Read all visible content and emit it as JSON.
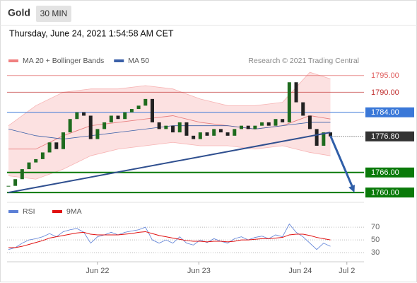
{
  "chart_data": {
    "type": "candlestick",
    "title": "Gold",
    "timeframe": "30 MIN",
    "subtitle": "Thursday, June 24, 2021 1:54:58 AM CET",
    "source": "Research © 2021 Trading Central",
    "xlim": [
      -0.2,
      51.9
    ],
    "xticks": [
      {
        "value": 13,
        "label": "Jun 22"
      },
      {
        "value": 27.8,
        "label": "Jun 23"
      },
      {
        "value": 42.6,
        "label": "Jun 24"
      },
      {
        "value": 49.4,
        "label": "Jul 2"
      }
    ],
    "ylim": [
      1757.7,
      1797.5
    ],
    "close": [
      1762,
      1764,
      1767,
      1769,
      1770,
      1772,
      1775,
      1773,
      1778,
      1782,
      1784,
      1783,
      1776,
      1779,
      1781,
      1783,
      1782,
      1784,
      1785,
      1786,
      1788,
      1781,
      1779,
      1780,
      1778,
      1781,
      1777,
      1776,
      1778,
      1777,
      1779,
      1778,
      1777,
      1779,
      1780,
      1779,
      1780,
      1781,
      1780,
      1782,
      1781,
      1793,
      1787,
      1783,
      1779,
      1774,
      1778,
      1776.8
    ],
    "up_color": "#1e6b1e",
    "down_color": "#222222",
    "legend": [
      {
        "name": "MA 20 + Bollinger Bands",
        "color": "#f08080"
      },
      {
        "name": "MA 50",
        "color": "#3a5fa8"
      }
    ],
    "overlays": {
      "x": [
        0,
        4,
        8,
        12,
        16,
        20,
        24,
        28,
        32,
        36,
        40,
        44,
        47
      ],
      "upper": [
        1780,
        1786,
        1790,
        1791,
        1791,
        1792,
        1791,
        1788,
        1786,
        1786,
        1787,
        1796,
        1794
      ],
      "ma20": [
        1773,
        1773,
        1777,
        1780,
        1781,
        1782,
        1783,
        1781,
        1780,
        1779,
        1780,
        1783,
        1782
      ],
      "lower": [
        1765,
        1764,
        1767,
        1771,
        1773,
        1774,
        1775,
        1774,
        1774,
        1773,
        1774,
        1772,
        1771
      ],
      "ma50": [
        1779,
        1777,
        1776,
        1777,
        1778,
        1779,
        1780,
        1780,
        1780,
        1779,
        1780,
        1781,
        1781
      ]
    },
    "trendline": {
      "x": [
        0,
        47
      ],
      "values": [
        1760,
        1778
      ],
      "color": "#2f4f8f"
    },
    "forecast_arrow": {
      "x": [
        47,
        50.5
      ],
      "values": [
        1777,
        1760
      ],
      "color": "#2f5ea8"
    },
    "levels": [
      {
        "value": 1795,
        "label": "1795.00",
        "color": "#e06060",
        "box": false
      },
      {
        "value": 1790,
        "label": "1790.00",
        "color": "#c03030",
        "box": false
      },
      {
        "value": 1784,
        "label": "1784.00",
        "color": "#3a78d8",
        "box": true
      },
      {
        "value": 1776.8,
        "label": "1776.80",
        "color": "#333333",
        "box": true,
        "dotted": true
      },
      {
        "value": 1766,
        "label": "1766.00",
        "color": "#0a7a0a",
        "box": true
      },
      {
        "value": 1760,
        "label": "1760.00",
        "color": "#0a7a0a",
        "box": true
      }
    ],
    "rsi": {
      "ylim": [
        18,
        99
      ],
      "yticks": [
        70,
        50,
        30
      ],
      "series": [
        {
          "name": "RSI",
          "color": "#5b7fd6",
          "values": [
            35,
            38,
            45,
            50,
            52,
            55,
            60,
            55,
            63,
            66,
            68,
            62,
            45,
            55,
            58,
            62,
            58,
            62,
            64,
            66,
            70,
            50,
            45,
            50,
            45,
            55,
            45,
            42,
            50,
            46,
            52,
            48,
            45,
            52,
            55,
            50,
            54,
            56,
            52,
            58,
            55,
            75,
            62,
            55,
            45,
            35,
            45,
            40
          ]
        },
        {
          "name": "9MA",
          "color": "#e01010",
          "values": [
            38,
            38,
            40,
            43,
            46,
            49,
            53,
            55,
            57,
            59,
            61,
            62,
            59,
            58,
            58,
            58,
            58,
            59,
            60,
            62,
            63,
            60,
            57,
            55,
            53,
            51,
            49,
            48,
            48,
            47,
            48,
            48,
            47,
            48,
            50,
            50,
            51,
            52,
            52,
            53,
            54,
            58,
            59,
            59,
            57,
            54,
            52,
            50
          ]
        }
      ]
    }
  }
}
